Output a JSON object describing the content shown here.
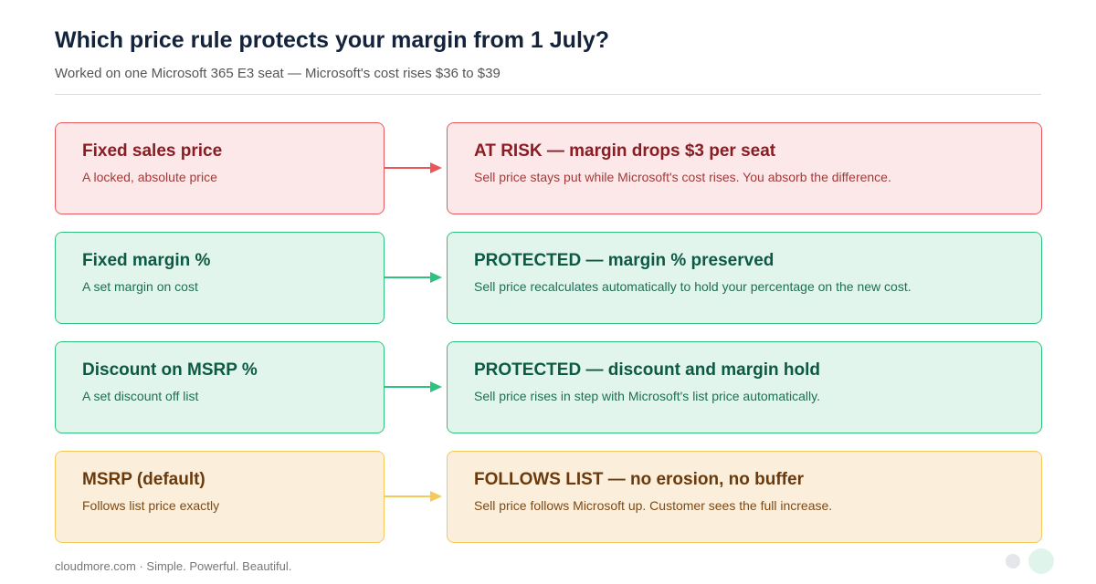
{
  "header": {
    "title": "Which price rule protects your margin from 1 July?",
    "subtitle": "Worked on one Microsoft 365 E3 seat — Microsoft's cost rises $36 to $39"
  },
  "rows": [
    {
      "rule": {
        "title": "Fixed sales price",
        "text": "A locked, absolute price"
      },
      "outcome": {
        "title": "AT RISK — margin drops $3 per seat",
        "text": "Sell price stays put while Microsoft's cost rises. You absorb the difference."
      }
    },
    {
      "rule": {
        "title": "Fixed margin %",
        "text": "A set margin on cost"
      },
      "outcome": {
        "title": "PROTECTED — margin % preserved",
        "text": "Sell price recalculates automatically to hold your percentage on the new cost."
      }
    },
    {
      "rule": {
        "title": "Discount on MSRP %",
        "text": "A set discount off list"
      },
      "outcome": {
        "title": "PROTECTED — discount and margin hold",
        "text": "Sell price rises in step with Microsoft's list price automatically."
      }
    },
    {
      "rule": {
        "title": "MSRP (default)",
        "text": "Follows list price exactly"
      },
      "outcome": {
        "title": "FOLLOWS LIST — no erosion, no buffer",
        "text": "Sell price follows Microsoft up. Customer sees the full increase."
      }
    }
  ],
  "footer": "cloudmore.com · Simple. Powerful. Beautiful."
}
